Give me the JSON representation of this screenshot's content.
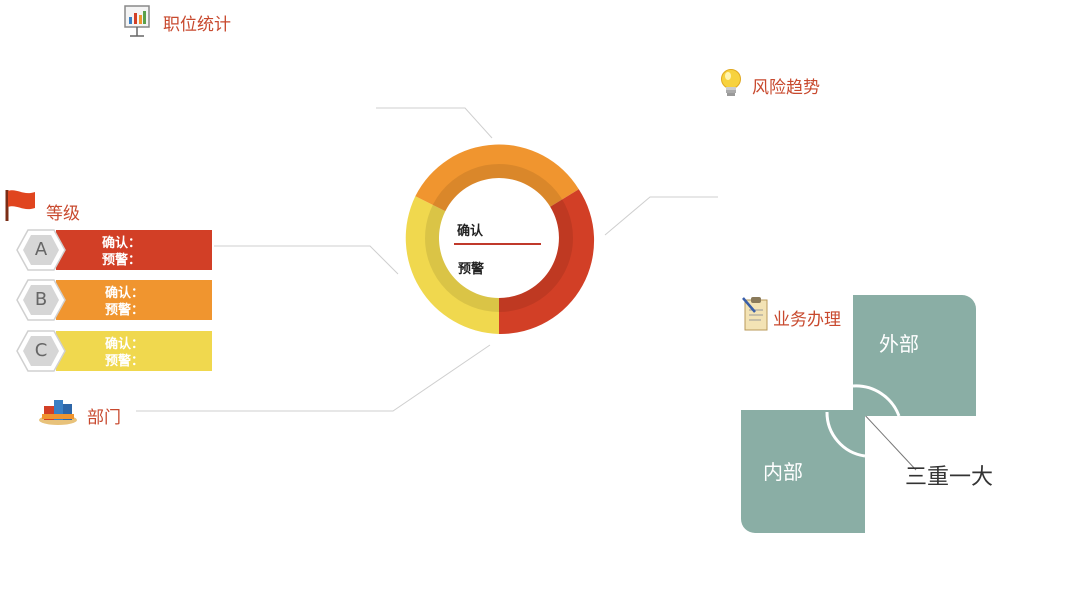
{
  "sections": {
    "position_stats": "职位统计",
    "risk_trend": "风险趋势",
    "level": "等级",
    "department": "部门",
    "business": "业务办理"
  },
  "levels": [
    {
      "letter": "A",
      "confirm": "确认：",
      "warn": "预警：",
      "color": "#d23f26"
    },
    {
      "letter": "B",
      "confirm": "确认：",
      "warn": "预警：",
      "color": "#f0952f"
    },
    {
      "letter": "C",
      "confirm": "确认：",
      "warn": "预警：",
      "color": "#f0d84e"
    }
  ],
  "center": {
    "confirm": "确认",
    "warn": "预警"
  },
  "quadrant": {
    "outer": "外部",
    "inner": "内部",
    "callout": "三重一大"
  },
  "colors": {
    "red": "#d23f26",
    "orange": "#f0952f",
    "yellow": "#f0d84e",
    "tile": "#8aaea5",
    "title": "#c8492e"
  },
  "icons": {
    "position_stats": "presentation-chart-icon",
    "risk_trend": "lightbulb-icon",
    "level": "flag-icon",
    "department": "books-icon",
    "business": "clipboard-icon"
  }
}
